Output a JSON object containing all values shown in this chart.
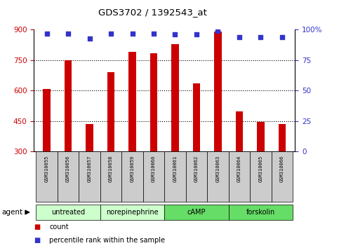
{
  "title": "GDS3702 / 1392543_at",
  "samples": [
    "GSM310055",
    "GSM310056",
    "GSM310057",
    "GSM310058",
    "GSM310059",
    "GSM310060",
    "GSM310061",
    "GSM310062",
    "GSM310063",
    "GSM310064",
    "GSM310065",
    "GSM310066"
  ],
  "counts": [
    607,
    750,
    435,
    693,
    790,
    785,
    830,
    637,
    893,
    497,
    447,
    435
  ],
  "percentiles": [
    97,
    97,
    93,
    97,
    97,
    97,
    96,
    96,
    99,
    94,
    94,
    94
  ],
  "ylim_left": [
    300,
    900
  ],
  "ylim_right": [
    0,
    100
  ],
  "yticks_left": [
    300,
    450,
    600,
    750,
    900
  ],
  "yticks_right": [
    0,
    25,
    50,
    75,
    100
  ],
  "bar_color": "#cc0000",
  "dot_color": "#3333cc",
  "groups": [
    {
      "label": "untreated",
      "start": 0,
      "end": 3
    },
    {
      "label": "norepinephrine",
      "start": 3,
      "end": 6
    },
    {
      "label": "cAMP",
      "start": 6,
      "end": 9
    },
    {
      "label": "forskolin",
      "start": 9,
      "end": 12
    }
  ],
  "group_color_light": "#ccffcc",
  "group_color_dark": "#66dd66",
  "sample_box_color": "#cccccc",
  "legend_count_color": "#cc0000",
  "legend_dot_color": "#3333cc",
  "tick_color_left": "#cc0000",
  "tick_color_right": "#3333cc",
  "grid_yticks": [
    450,
    600,
    750
  ],
  "bar_width": 0.35
}
